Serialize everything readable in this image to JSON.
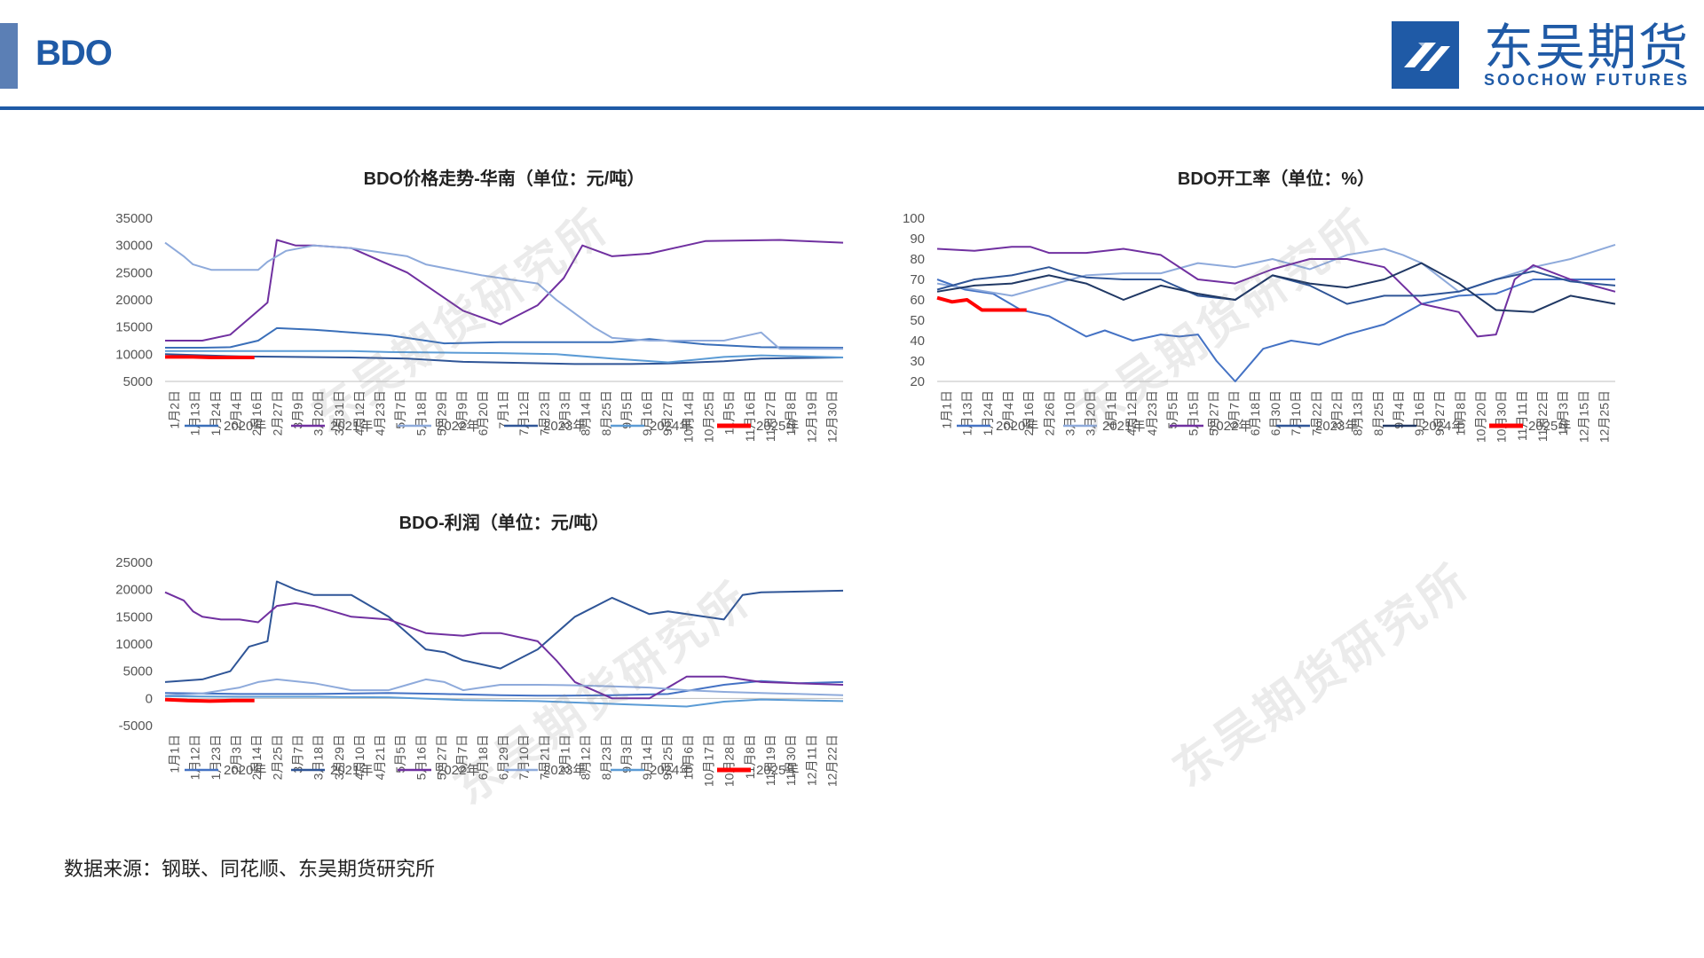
{
  "page": {
    "title": "BDO"
  },
  "logo": {
    "cn": "东吴期货",
    "en": "SOOCHOW FUTURES"
  },
  "watermark": "东吴期货研究所",
  "source": "数据来源：钢联、同花顺、东吴期货研究所",
  "colors": {
    "accent": "#1f5aa6",
    "2020年": "#3a6fb9",
    "2021年": "#7030a0",
    "2022年": "#8eaadb",
    "2023年": "#2f5597",
    "2024年": "#5b9bd5",
    "2025年": "#ff0000",
    "operating_2020年": "#4472c4",
    "operating_2021年": "#8eaadb",
    "operating_2022年": "#7030a0",
    "operating_2023年": "#2f5597",
    "operating_2024年": "#203864",
    "profit_2020年": "#4472c4",
    "profit_2021年": "#2f5597",
    "profit_2022年": "#7030a0",
    "profit_2023年": "#8eaadb",
    "profit_2024年": "#5b9bd5"
  },
  "chart_data": [
    {
      "id": "price",
      "type": "line",
      "title": "BDO价格走势-华南（单位：元/吨）",
      "xlabel": "",
      "ylabel": "",
      "ylim": [
        5000,
        35000
      ],
      "yticks": [
        5000,
        10000,
        15000,
        20000,
        25000,
        30000,
        35000
      ],
      "x_range": [
        0,
        364
      ],
      "xtick_labels": [
        "1月2日",
        "1月13日",
        "1月24日",
        "2月4日",
        "2月16日",
        "2月27日",
        "3月9日",
        "3月20日",
        "3月31日",
        "4月12日",
        "4月23日",
        "5月7日",
        "5月18日",
        "5月29日",
        "6月9日",
        "6月20日",
        "7月1日",
        "7月12日",
        "7月23日",
        "8月3日",
        "8月14日",
        "8月25日",
        "9月5日",
        "9月16日",
        "9月27日",
        "10月14日",
        "10月25日",
        "11月5日",
        "11月16日",
        "11月27日",
        "12月8日",
        "12月19日",
        "12月30日"
      ],
      "legend_position": "bottom",
      "series": [
        {
          "name": "2020年",
          "x": [
            0,
            20,
            35,
            50,
            60,
            80,
            120,
            150,
            180,
            210,
            240,
            260,
            290,
            320,
            364
          ],
          "values": [
            11200,
            11200,
            11300,
            12500,
            14800,
            14500,
            13500,
            12000,
            12200,
            12200,
            12200,
            12800,
            11800,
            11300,
            11200
          ]
        },
        {
          "name": "2021年",
          "x": [
            0,
            20,
            35,
            50,
            55,
            60,
            70,
            80,
            100,
            130,
            160,
            180,
            200,
            214,
            224,
            240,
            260,
            290,
            330,
            364
          ],
          "values": [
            12500,
            12500,
            13600,
            18000,
            19500,
            31000,
            30000,
            30000,
            29500,
            25000,
            18000,
            15500,
            19000,
            24000,
            30000,
            28000,
            28500,
            30800,
            31000,
            30500
          ]
        },
        {
          "name": "2022年",
          "x": [
            0,
            10,
            15,
            25,
            35,
            50,
            55,
            65,
            80,
            100,
            130,
            140,
            170,
            200,
            210,
            230,
            240,
            260,
            280,
            300,
            320,
            330,
            364
          ],
          "values": [
            30500,
            28000,
            26500,
            25500,
            25500,
            25500,
            27000,
            29000,
            30000,
            29500,
            28000,
            26500,
            24500,
            23000,
            20000,
            15000,
            13000,
            12500,
            12500,
            12500,
            14000,
            11000,
            11000
          ]
        },
        {
          "name": "2023年",
          "x": [
            0,
            40,
            70,
            100,
            130,
            160,
            190,
            220,
            250,
            270,
            300,
            320,
            364
          ],
          "values": [
            10000,
            9600,
            9500,
            9400,
            9200,
            8600,
            8400,
            8200,
            8200,
            8300,
            8700,
            9200,
            9400
          ]
        },
        {
          "name": "2024年",
          "x": [
            0,
            60,
            100,
            120,
            150,
            180,
            210,
            240,
            270,
            300,
            320,
            364
          ],
          "values": [
            10600,
            10600,
            10600,
            10400,
            10300,
            10200,
            10000,
            9200,
            8500,
            9500,
            9800,
            9400
          ]
        },
        {
          "name": "2025年",
          "x": [
            0,
            15,
            25,
            35,
            48
          ],
          "values": [
            9500,
            9500,
            9400,
            9400,
            9400
          ]
        }
      ]
    },
    {
      "id": "operating",
      "type": "line",
      "title": "BDO开工率（单位：%）",
      "xlabel": "",
      "ylabel": "",
      "ylim": [
        20,
        100
      ],
      "yticks": [
        20,
        30,
        40,
        50,
        60,
        70,
        80,
        90,
        100
      ],
      "x_range": [
        0,
        364
      ],
      "xtick_labels": [
        "1月1日",
        "1月13日",
        "1月24日",
        "2月4日",
        "2月16日",
        "2月26日",
        "3月10日",
        "3月20日",
        "4月1日",
        "4月12日",
        "4月23日",
        "5月5日",
        "5月15日",
        "5月27日",
        "6月7日",
        "6月18日",
        "6月30日",
        "7月10日",
        "7月22日",
        "8月2日",
        "8月13日",
        "8月25日",
        "9月4日",
        "9月16日",
        "9月27日",
        "10月8日",
        "10月20日",
        "10月30日",
        "11月11日",
        "11月22日",
        "12月3日",
        "12月15日",
        "12月25日"
      ],
      "legend_position": "bottom",
      "series": [
        {
          "name": "2020年",
          "x": [
            0,
            15,
            30,
            45,
            60,
            70,
            80,
            90,
            105,
            120,
            130,
            140,
            150,
            160,
            175,
            190,
            205,
            220,
            240,
            260,
            280,
            300,
            320,
            340,
            364
          ],
          "values": [
            70,
            65,
            63,
            55,
            52,
            47,
            42,
            45,
            40,
            43,
            42,
            43,
            30,
            20,
            36,
            40,
            38,
            43,
            48,
            58,
            62,
            63,
            70,
            70,
            70
          ]
        },
        {
          "name": "2021年",
          "x": [
            0,
            20,
            40,
            60,
            80,
            100,
            120,
            140,
            160,
            180,
            200,
            220,
            240,
            250,
            260,
            280,
            300,
            320,
            340,
            364
          ],
          "values": [
            68,
            65,
            62,
            67,
            72,
            73,
            73,
            78,
            76,
            80,
            75,
            82,
            85,
            82,
            78,
            64,
            70,
            76,
            80,
            87
          ]
        },
        {
          "name": "2022年",
          "x": [
            0,
            20,
            40,
            50,
            60,
            80,
            100,
            120,
            140,
            160,
            180,
            200,
            220,
            240,
            260,
            280,
            290,
            300,
            310,
            320,
            340,
            364
          ],
          "values": [
            85,
            84,
            86,
            86,
            83,
            83,
            85,
            82,
            70,
            68,
            75,
            80,
            80,
            76,
            58,
            54,
            42,
            43,
            70,
            77,
            70,
            64
          ]
        },
        {
          "name": "2023年",
          "x": [
            0,
            20,
            40,
            60,
            70,
            80,
            100,
            120,
            140,
            160,
            180,
            200,
            220,
            240,
            260,
            280,
            300,
            320,
            340,
            364
          ],
          "values": [
            65,
            70,
            72,
            76,
            73,
            71,
            70,
            70,
            62,
            60,
            72,
            67,
            58,
            62,
            62,
            64,
            70,
            74,
            69,
            67
          ]
        },
        {
          "name": "2024年",
          "x": [
            0,
            20,
            40,
            60,
            80,
            100,
            120,
            140,
            160,
            180,
            200,
            220,
            240,
            260,
            280,
            300,
            320,
            340,
            364
          ],
          "values": [
            64,
            67,
            68,
            72,
            68,
            60,
            67,
            63,
            60,
            72,
            68,
            66,
            70,
            78,
            68,
            55,
            54,
            62,
            58
          ]
        },
        {
          "name": "2025年",
          "x": [
            0,
            8,
            16,
            24,
            36,
            48
          ],
          "values": [
            61,
            59,
            60,
            55,
            55,
            55
          ]
        }
      ]
    },
    {
      "id": "profit",
      "type": "line",
      "title": "BDO-利润（单位：元/吨）",
      "xlabel": "",
      "ylabel": "",
      "ylim": [
        -5000,
        25000
      ],
      "yticks": [
        -5000,
        0,
        5000,
        10000,
        15000,
        20000,
        25000
      ],
      "x_range": [
        0,
        364
      ],
      "xtick_labels": [
        "1月1日",
        "1月12日",
        "1月23日",
        "2月3日",
        "2月14日",
        "2月25日",
        "3月7日",
        "3月18日",
        "3月29日",
        "4月10日",
        "4月21日",
        "5月5日",
        "5月16日",
        "5月27日",
        "6月7日",
        "6月18日",
        "6月29日",
        "7月10日",
        "7月21日",
        "8月1日",
        "8月12日",
        "8月23日",
        "9月3日",
        "9月14日",
        "9月25日",
        "10月6日",
        "10月17日",
        "10月28日",
        "11月8日",
        "11月19日",
        "11月30日",
        "12月11日",
        "12月22日"
      ],
      "legend_position": "bottom",
      "series": [
        {
          "name": "2020年",
          "x": [
            0,
            40,
            80,
            120,
            150,
            180,
            200,
            210,
            240,
            270,
            300,
            320,
            340,
            364
          ],
          "values": [
            1000,
            800,
            800,
            1000,
            800,
            600,
            500,
            500,
            600,
            800,
            2500,
            3200,
            2800,
            3000
          ]
        },
        {
          "name": "2021年",
          "x": [
            0,
            20,
            35,
            45,
            55,
            60,
            70,
            80,
            100,
            120,
            140,
            150,
            160,
            180,
            200,
            220,
            240,
            260,
            270,
            300,
            310,
            320,
            364
          ],
          "values": [
            3000,
            3500,
            5000,
            9500,
            10500,
            21500,
            20000,
            19000,
            19000,
            15000,
            9000,
            8500,
            7000,
            5500,
            9000,
            15000,
            18500,
            15500,
            16000,
            14500,
            19000,
            19500,
            19800
          ]
        },
        {
          "name": "2022年",
          "x": [
            0,
            10,
            15,
            20,
            30,
            40,
            50,
            60,
            70,
            80,
            100,
            120,
            140,
            160,
            170,
            180,
            200,
            210,
            220,
            240,
            260,
            280,
            300,
            310,
            320,
            364
          ],
          "values": [
            19500,
            18000,
            16000,
            15000,
            14500,
            14500,
            14000,
            17000,
            17500,
            17000,
            15000,
            14500,
            12000,
            11500,
            12000,
            12000,
            10500,
            7000,
            3000,
            0,
            0,
            4000,
            4000,
            3500,
            3000,
            2500
          ]
        },
        {
          "name": "2023年",
          "x": [
            0,
            20,
            40,
            50,
            60,
            80,
            100,
            120,
            130,
            140,
            150,
            160,
            180,
            200,
            220,
            240,
            260,
            280,
            300,
            320,
            364
          ],
          "values": [
            500,
            900,
            2000,
            3000,
            3500,
            2800,
            1500,
            1500,
            2500,
            3500,
            3000,
            1500,
            2500,
            2500,
            2400,
            2200,
            2000,
            1500,
            1200,
            1000,
            600
          ]
        },
        {
          "name": "2024年",
          "x": [
            0,
            40,
            80,
            120,
            160,
            200,
            240,
            280,
            300,
            320,
            364
          ],
          "values": [
            400,
            300,
            300,
            200,
            -300,
            -500,
            -1000,
            -1500,
            -600,
            -200,
            -500
          ]
        },
        {
          "name": "2025年",
          "x": [
            0,
            12,
            24,
            36,
            48
          ],
          "values": [
            -200,
            -400,
            -500,
            -400,
            -400
          ]
        }
      ]
    }
  ]
}
